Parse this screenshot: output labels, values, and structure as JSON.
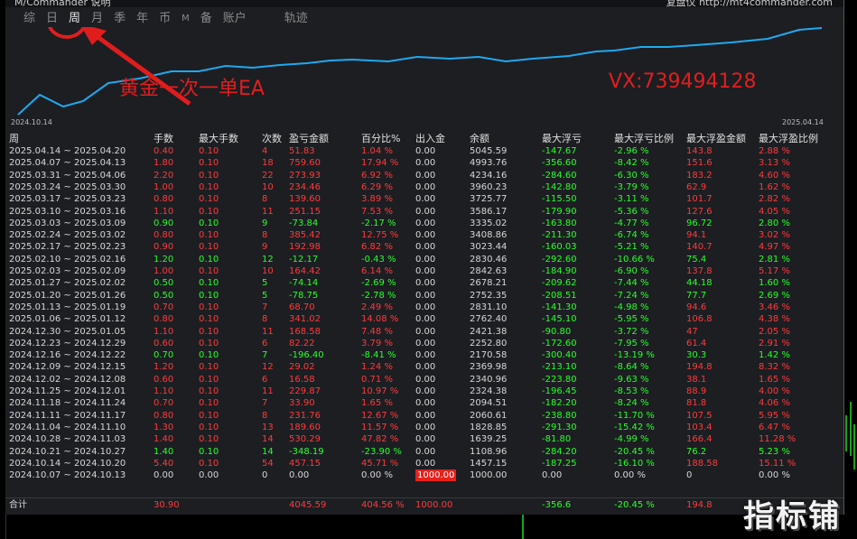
{
  "header": {
    "left_text": "M/Commander 说明",
    "right_text": "复盘仪  http://mt4commander.com",
    "tabs": [
      "综",
      "日",
      "周",
      "月",
      "季",
      "年",
      "币",
      "M",
      "备",
      "账户",
      "轨迹"
    ],
    "active_tab": "周"
  },
  "chart": {
    "start_date": "2024.10.14",
    "end_date": "2025.04.14",
    "line_color": "#1fa9f0"
  },
  "annotations": {
    "ea_label": "黄金一次一单EA",
    "vx_label": "VX:739494128"
  },
  "columns": [
    "周",
    "手数",
    "最大手数",
    "次数",
    "盈亏金额",
    "百分比%",
    "出入金",
    "余额",
    "最大浮亏",
    "最大浮亏比例",
    "最大浮盈金额",
    "最大浮盈比例"
  ],
  "rows": [
    {
      "week": "2025.04.14 ~ 2025.04.20",
      "lots": "0.40",
      "maxlots": "0.10",
      "count": "4",
      "pl": "51.83",
      "pct": "1.04 %",
      "io": "0.00",
      "bal": "5045.59",
      "mdd": "-147.67",
      "mddp": "-2.96 %",
      "mfe": "143.8",
      "mfep": "2.88 %",
      "c": "red"
    },
    {
      "week": "2025.04.07 ~ 2025.04.13",
      "lots": "1.80",
      "maxlots": "0.10",
      "count": "18",
      "pl": "759.60",
      "pct": "17.94 %",
      "io": "0.00",
      "bal": "4993.76",
      "mdd": "-356.60",
      "mddp": "-8.42 %",
      "mfe": "151.6",
      "mfep": "3.13 %",
      "c": "red"
    },
    {
      "week": "2025.03.31 ~ 2025.04.06",
      "lots": "2.20",
      "maxlots": "0.10",
      "count": "22",
      "pl": "273.93",
      "pct": "6.92 %",
      "io": "0.00",
      "bal": "4234.16",
      "mdd": "-284.60",
      "mddp": "-6.30 %",
      "mfe": "183.2",
      "mfep": "4.60 %",
      "c": "red"
    },
    {
      "week": "2025.03.24 ~ 2025.03.30",
      "lots": "1.00",
      "maxlots": "0.10",
      "count": "10",
      "pl": "234.46",
      "pct": "6.29 %",
      "io": "0.00",
      "bal": "3960.23",
      "mdd": "-142.80",
      "mddp": "-3.79 %",
      "mfe": "62.9",
      "mfep": "1.62 %",
      "c": "red"
    },
    {
      "week": "2025.03.17 ~ 2025.03.23",
      "lots": "0.80",
      "maxlots": "0.10",
      "count": "8",
      "pl": "139.60",
      "pct": "3.89 %",
      "io": "0.00",
      "bal": "3725.77",
      "mdd": "-115.50",
      "mddp": "-3.11 %",
      "mfe": "101.7",
      "mfep": "2.82 %",
      "c": "red"
    },
    {
      "week": "2025.03.10 ~ 2025.03.16",
      "lots": "1.10",
      "maxlots": "0.10",
      "count": "11",
      "pl": "251.15",
      "pct": "7.53 %",
      "io": "0.00",
      "bal": "3586.17",
      "mdd": "-179.90",
      "mddp": "-5.36 %",
      "mfe": "127.6",
      "mfep": "4.05 %",
      "c": "red"
    },
    {
      "week": "2025.03.03 ~ 2025.03.09",
      "lots": "0.90",
      "maxlots": "0.10",
      "count": "9",
      "pl": "-73.84",
      "pct": "-2.17 %",
      "io": "0.00",
      "bal": "3335.02",
      "mdd": "-163.80",
      "mddp": "-4.77 %",
      "mfe": "96.72",
      "mfep": "2.80 %",
      "c": "green"
    },
    {
      "week": "2025.02.24 ~ 2025.03.02",
      "lots": "0.80",
      "maxlots": "0.10",
      "count": "8",
      "pl": "385.42",
      "pct": "12.75 %",
      "io": "0.00",
      "bal": "3408.86",
      "mdd": "-211.30",
      "mddp": "-6.74 %",
      "mfe": "94.1",
      "mfep": "3.02 %",
      "c": "red"
    },
    {
      "week": "2025.02.17 ~ 2025.02.23",
      "lots": "0.90",
      "maxlots": "0.10",
      "count": "9",
      "pl": "192.98",
      "pct": "6.82 %",
      "io": "0.00",
      "bal": "3023.44",
      "mdd": "-160.03",
      "mddp": "-5.21 %",
      "mfe": "140.7",
      "mfep": "4.97 %",
      "c": "red"
    },
    {
      "week": "2025.02.10 ~ 2025.02.16",
      "lots": "1.20",
      "maxlots": "0.10",
      "count": "12",
      "pl": "-12.17",
      "pct": "-0.43 %",
      "io": "0.00",
      "bal": "2830.46",
      "mdd": "-292.60",
      "mddp": "-10.66 %",
      "mfe": "75.4",
      "mfep": "2.81 %",
      "c": "green"
    },
    {
      "week": "2025.02.03 ~ 2025.02.09",
      "lots": "1.00",
      "maxlots": "0.10",
      "count": "10",
      "pl": "164.42",
      "pct": "6.14 %",
      "io": "0.00",
      "bal": "2842.63",
      "mdd": "-184.90",
      "mddp": "-6.90 %",
      "mfe": "137.8",
      "mfep": "5.17 %",
      "c": "red"
    },
    {
      "week": "2025.01.27 ~ 2025.02.02",
      "lots": "0.50",
      "maxlots": "0.10",
      "count": "5",
      "pl": "-74.14",
      "pct": "-2.69 %",
      "io": "0.00",
      "bal": "2678.21",
      "mdd": "-209.62",
      "mddp": "-7.44 %",
      "mfe": "44.18",
      "mfep": "1.60 %",
      "c": "green"
    },
    {
      "week": "2025.01.20 ~ 2025.01.26",
      "lots": "0.50",
      "maxlots": "0.10",
      "count": "5",
      "pl": "-78.75",
      "pct": "-2.78 %",
      "io": "0.00",
      "bal": "2752.35",
      "mdd": "-208.51",
      "mddp": "-7.24 %",
      "mfe": "77.7",
      "mfep": "2.69 %",
      "c": "green"
    },
    {
      "week": "2025.01.13 ~ 2025.01.19",
      "lots": "0.70",
      "maxlots": "0.10",
      "count": "7",
      "pl": "68.70",
      "pct": "2.49 %",
      "io": "0.00",
      "bal": "2831.10",
      "mdd": "-141.30",
      "mddp": "-4.98 %",
      "mfe": "94.6",
      "mfep": "3.46 %",
      "c": "red"
    },
    {
      "week": "2025.01.06 ~ 2025.01.12",
      "lots": "0.80",
      "maxlots": "0.10",
      "count": "8",
      "pl": "341.02",
      "pct": "14.08 %",
      "io": "0.00",
      "bal": "2762.40",
      "mdd": "-145.10",
      "mddp": "-5.95 %",
      "mfe": "106.8",
      "mfep": "4.38 %",
      "c": "red"
    },
    {
      "week": "2024.12.30 ~ 2025.01.05",
      "lots": "1.10",
      "maxlots": "0.10",
      "count": "11",
      "pl": "168.58",
      "pct": "7.48 %",
      "io": "0.00",
      "bal": "2421.38",
      "mdd": "-90.80",
      "mddp": "-3.72 %",
      "mfe": "47",
      "mfep": "2.05 %",
      "c": "red"
    },
    {
      "week": "2024.12.23 ~ 2024.12.29",
      "lots": "0.60",
      "maxlots": "0.10",
      "count": "6",
      "pl": "82.22",
      "pct": "3.79 %",
      "io": "0.00",
      "bal": "2252.80",
      "mdd": "-172.60",
      "mddp": "-7.95 %",
      "mfe": "61.4",
      "mfep": "2.91 %",
      "c": "red"
    },
    {
      "week": "2024.12.16 ~ 2024.12.22",
      "lots": "0.70",
      "maxlots": "0.10",
      "count": "7",
      "pl": "-196.40",
      "pct": "-8.41 %",
      "io": "0.00",
      "bal": "2170.58",
      "mdd": "-300.40",
      "mddp": "-13.19 %",
      "mfe": "30.3",
      "mfep": "1.42 %",
      "c": "green"
    },
    {
      "week": "2024.12.09 ~ 2024.12.15",
      "lots": "1.20",
      "maxlots": "0.10",
      "count": "12",
      "pl": "29.02",
      "pct": "1.24 %",
      "io": "0.00",
      "bal": "2369.98",
      "mdd": "-213.10",
      "mddp": "-8.64 %",
      "mfe": "194.8",
      "mfep": "8.32 %",
      "c": "red"
    },
    {
      "week": "2024.12.02 ~ 2024.12.08",
      "lots": "0.60",
      "maxlots": "0.10",
      "count": "6",
      "pl": "16.58",
      "pct": "0.71 %",
      "io": "0.00",
      "bal": "2340.96",
      "mdd": "-223.80",
      "mddp": "-9.63 %",
      "mfe": "38.1",
      "mfep": "1.65 %",
      "c": "red"
    },
    {
      "week": "2024.11.25 ~ 2024.12.01",
      "lots": "1.10",
      "maxlots": "0.10",
      "count": "11",
      "pl": "229.87",
      "pct": "10.97 %",
      "io": "0.00",
      "bal": "2324.38",
      "mdd": "-196.45",
      "mddp": "-8.53 %",
      "mfe": "88.9",
      "mfep": "4.00 %",
      "c": "red"
    },
    {
      "week": "2024.11.18 ~ 2024.11.24",
      "lots": "0.70",
      "maxlots": "0.10",
      "count": "7",
      "pl": "33.90",
      "pct": "1.65 %",
      "io": "0.00",
      "bal": "2094.51",
      "mdd": "-182.20",
      "mddp": "-8.24 %",
      "mfe": "81.8",
      "mfep": "4.06 %",
      "c": "red"
    },
    {
      "week": "2024.11.11 ~ 2024.11.17",
      "lots": "0.80",
      "maxlots": "0.10",
      "count": "8",
      "pl": "231.76",
      "pct": "12.67 %",
      "io": "0.00",
      "bal": "2060.61",
      "mdd": "-238.80",
      "mddp": "-11.70 %",
      "mfe": "107.5",
      "mfep": "5.95 %",
      "c": "red"
    },
    {
      "week": "2024.11.04 ~ 2024.11.10",
      "lots": "1.30",
      "maxlots": "0.10",
      "count": "13",
      "pl": "189.60",
      "pct": "11.57 %",
      "io": "0.00",
      "bal": "1828.85",
      "mdd": "-291.30",
      "mddp": "-15.42 %",
      "mfe": "103.4",
      "mfep": "6.47 %",
      "c": "red"
    },
    {
      "week": "2024.10.28 ~ 2024.11.03",
      "lots": "1.40",
      "maxlots": "0.10",
      "count": "14",
      "pl": "530.29",
      "pct": "47.82 %",
      "io": "0.00",
      "bal": "1639.25",
      "mdd": "-81.80",
      "mddp": "-4.99 %",
      "mfe": "166.4",
      "mfep": "11.28 %",
      "c": "red"
    },
    {
      "week": "2024.10.21 ~ 2024.10.27",
      "lots": "1.40",
      "maxlots": "0.10",
      "count": "14",
      "pl": "-348.19",
      "pct": "-23.90 %",
      "io": "0.00",
      "bal": "1108.96",
      "mdd": "-284.20",
      "mddp": "-20.45 %",
      "mfe": "76.2",
      "mfep": "5.23 %",
      "c": "green"
    },
    {
      "week": "2024.10.14 ~ 2024.10.20",
      "lots": "5.40",
      "maxlots": "0.10",
      "count": "54",
      "pl": "457.15",
      "pct": "45.71 %",
      "io": "0.00",
      "bal": "1457.15",
      "mdd": "-187.25",
      "mddp": "-16.10 %",
      "mfe": "188.58",
      "mfep": "15.11 %",
      "c": "red"
    },
    {
      "week": "2024.10.07 ~ 2024.10.13",
      "lots": "0.00",
      "maxlots": "0.00",
      "count": "0",
      "pl": "0.00",
      "pct": "0.00 %",
      "io": "1000.00",
      "bal": "1000.00",
      "mdd": "0.00",
      "mddp": "0.00 %",
      "mfe": "0",
      "mfep": "0.00 %",
      "c": "white"
    }
  ],
  "total": {
    "label": "合计",
    "lots": "30.90",
    "pl": "4045.59",
    "pct": "404.56 %",
    "io": "1000.00",
    "mdd": "-356.6",
    "mddp": "-20.45 %",
    "mfe": "194.8"
  },
  "watermark": "指标铺"
}
